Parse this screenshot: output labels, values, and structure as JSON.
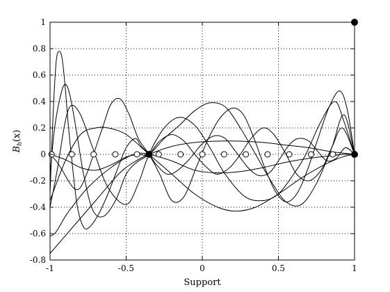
{
  "chart_data": {
    "type": "line",
    "xlabel": "Support",
    "ylabel_main": "B",
    "ylabel_sub": "h",
    "ylabel_tail": "(x)",
    "xlim": [
      -1,
      1
    ],
    "ylim": [
      -0.8,
      1
    ],
    "x_ticks": [
      -1,
      -0.5,
      0,
      0.5,
      1
    ],
    "x_tick_labels": [
      "-1",
      "-0.5",
      "0",
      "0.5",
      "1"
    ],
    "y_ticks": [
      -0.8,
      -0.6,
      -0.4,
      -0.2,
      0,
      0.2,
      0.4,
      0.6,
      0.8,
      1
    ],
    "y_tick_labels": [
      "-0.8",
      "-0.6",
      "-0.4",
      "-0.2",
      "0",
      "0.2",
      "0.4",
      "0.6",
      "0.8",
      "1"
    ],
    "grid": true,
    "grid_style": "dotted",
    "line_color": "#000000",
    "series": [
      {
        "x": [
          -1,
          -0.97,
          -0.94,
          -0.9,
          -0.85,
          -0.75,
          -0.6,
          -0.45,
          -0.35,
          -0.2,
          -0.05,
          0.1,
          0.25,
          0.4,
          0.55,
          0.7,
          0.85,
          0.93,
          1
        ],
        "y": [
          -0.62,
          -0.6,
          -0.55,
          -0.47,
          -0.39,
          -0.25,
          -0.1,
          0.0,
          0.0,
          -0.05,
          -0.12,
          -0.14,
          -0.13,
          -0.1,
          -0.06,
          -0.03,
          -0.01,
          0.0,
          0.0
        ]
      },
      {
        "x": [
          -1,
          -0.85,
          -0.7,
          -0.55,
          -0.45,
          -0.35,
          -0.2,
          -0.05,
          0.1,
          0.25,
          0.4,
          0.55,
          0.7,
          0.85,
          1
        ],
        "y": [
          -0.75,
          -0.55,
          -0.35,
          -0.15,
          -0.06,
          0.0,
          0.06,
          0.09,
          0.1,
          0.1,
          0.09,
          0.07,
          0.05,
          0.02,
          0.0
        ]
      },
      {
        "x": [
          -1,
          -0.9,
          -0.8,
          -0.7,
          -0.62,
          -0.5,
          -0.35,
          -0.2,
          -0.05,
          0.1,
          0.22,
          0.35,
          0.5,
          0.65,
          0.8,
          0.92,
          1
        ],
        "y": [
          -0.35,
          -0.05,
          0.15,
          0.2,
          0.2,
          0.15,
          0.0,
          -0.15,
          -0.3,
          -0.4,
          -0.43,
          -0.4,
          -0.3,
          -0.18,
          -0.08,
          -0.02,
          0.0
        ]
      },
      {
        "x": [
          -1,
          -0.95,
          -0.9,
          -0.86,
          -0.8,
          -0.72,
          -0.62,
          -0.5,
          -0.42,
          -0.35,
          -0.25,
          -0.15,
          -0.05,
          0.05,
          0.15,
          0.28,
          0.4,
          0.5,
          0.6,
          0.68,
          0.78,
          0.87,
          0.93,
          1
        ],
        "y": [
          -0.4,
          -0.1,
          0.25,
          0.37,
          0.3,
          0.05,
          -0.25,
          -0.38,
          -0.22,
          0.0,
          0.2,
          0.28,
          0.22,
          0.05,
          -0.15,
          -0.32,
          -0.35,
          -0.3,
          -0.15,
          0.0,
          0.25,
          0.4,
          0.25,
          0.0
        ]
      },
      {
        "x": [
          -1,
          -0.97,
          -0.93,
          -0.9,
          -0.87,
          -0.83,
          -0.78,
          -0.72,
          -0.65,
          -0.57,
          -0.5,
          -0.43,
          -0.35,
          -0.28,
          -0.2,
          -0.12,
          -0.05,
          0.03,
          0.1,
          0.18,
          0.25,
          0.32,
          0.4,
          0.47,
          0.55,
          0.62,
          0.7,
          0.78,
          0.85,
          0.92,
          1
        ],
        "y": [
          -0.15,
          0.2,
          0.45,
          0.53,
          0.45,
          0.2,
          -0.15,
          -0.42,
          -0.47,
          -0.35,
          -0.15,
          -0.06,
          0.0,
          0.1,
          0.15,
          0.1,
          0.0,
          -0.1,
          -0.15,
          -0.1,
          0.0,
          0.12,
          0.2,
          0.15,
          0.0,
          -0.15,
          -0.2,
          -0.12,
          0.05,
          0.2,
          0.0
        ]
      },
      {
        "x": [
          -1,
          -0.98,
          -0.96,
          -0.94,
          -0.92,
          -0.9,
          -0.88,
          -0.85,
          -0.82,
          -0.78,
          -0.74,
          -0.68,
          -0.62,
          -0.56,
          -0.5,
          -0.44,
          -0.4,
          -0.35,
          -0.3,
          -0.23,
          -0.16,
          -0.08,
          0.0,
          0.08,
          0.15,
          0.22,
          0.3,
          0.37,
          0.44,
          0.5,
          0.57,
          0.63,
          0.7,
          0.76,
          0.82,
          0.88,
          0.94,
          1
        ],
        "y": [
          -0.3,
          0.3,
          0.7,
          0.78,
          0.72,
          0.5,
          0.22,
          -0.12,
          -0.4,
          -0.55,
          -0.55,
          -0.45,
          -0.3,
          -0.12,
          0.05,
          0.12,
          0.06,
          0.0,
          -0.08,
          -0.15,
          -0.12,
          -0.03,
          0.08,
          0.14,
          0.12,
          0.02,
          -0.1,
          -0.16,
          -0.14,
          -0.05,
          0.07,
          0.12,
          0.1,
          0.02,
          -0.05,
          -0.03,
          0.05,
          0.0
        ]
      },
      {
        "x": [
          -1,
          -0.96,
          -0.92,
          -0.88,
          -0.84,
          -0.8,
          -0.75,
          -0.7,
          -0.65,
          -0.6,
          -0.54,
          -0.48,
          -0.42,
          -0.35,
          -0.28,
          -0.2,
          -0.12,
          -0.04,
          0.04,
          0.12,
          0.2,
          0.27,
          0.34,
          0.41,
          0.48,
          0.55,
          0.62,
          0.69,
          0.76,
          0.83,
          0.9,
          0.95,
          1
        ],
        "y": [
          0.0,
          -0.05,
          -0.12,
          -0.2,
          -0.26,
          -0.25,
          -0.12,
          0.05,
          0.22,
          0.38,
          0.42,
          0.3,
          0.12,
          0.0,
          -0.15,
          -0.35,
          -0.32,
          -0.1,
          0.12,
          0.28,
          0.35,
          0.3,
          0.12,
          -0.1,
          -0.28,
          -0.36,
          -0.3,
          -0.12,
          0.12,
          0.35,
          0.48,
          0.35,
          0.0
        ]
      },
      {
        "x": [
          -1,
          -0.9,
          -0.8,
          -0.7,
          -0.6,
          -0.5,
          -0.42,
          -0.35,
          -0.25,
          -0.15,
          -0.05,
          0.05,
          0.15,
          0.25,
          0.35,
          0.45,
          0.55,
          0.65,
          0.75,
          0.85,
          0.93,
          1
        ],
        "y": [
          0.0,
          -0.04,
          -0.1,
          -0.12,
          -0.08,
          -0.02,
          0.0,
          0.0,
          0.12,
          0.22,
          0.33,
          0.39,
          0.36,
          0.2,
          0.0,
          -0.2,
          -0.36,
          -0.38,
          -0.22,
          0.05,
          0.3,
          0.0
        ]
      }
    ],
    "markers_open": {
      "x": [
        -0.99,
        -0.857,
        -0.714,
        -0.571,
        -0.429,
        -0.286,
        -0.143,
        0.0,
        0.143,
        0.286,
        0.429,
        0.571,
        0.714,
        0.857
      ],
      "y": [
        0,
        0,
        0,
        0,
        0,
        0,
        0,
        0,
        0,
        0,
        0,
        0,
        0,
        0
      ]
    },
    "markers_filled": {
      "x": [
        -0.35,
        1,
        1
      ],
      "y": [
        0,
        0,
        1
      ]
    }
  }
}
